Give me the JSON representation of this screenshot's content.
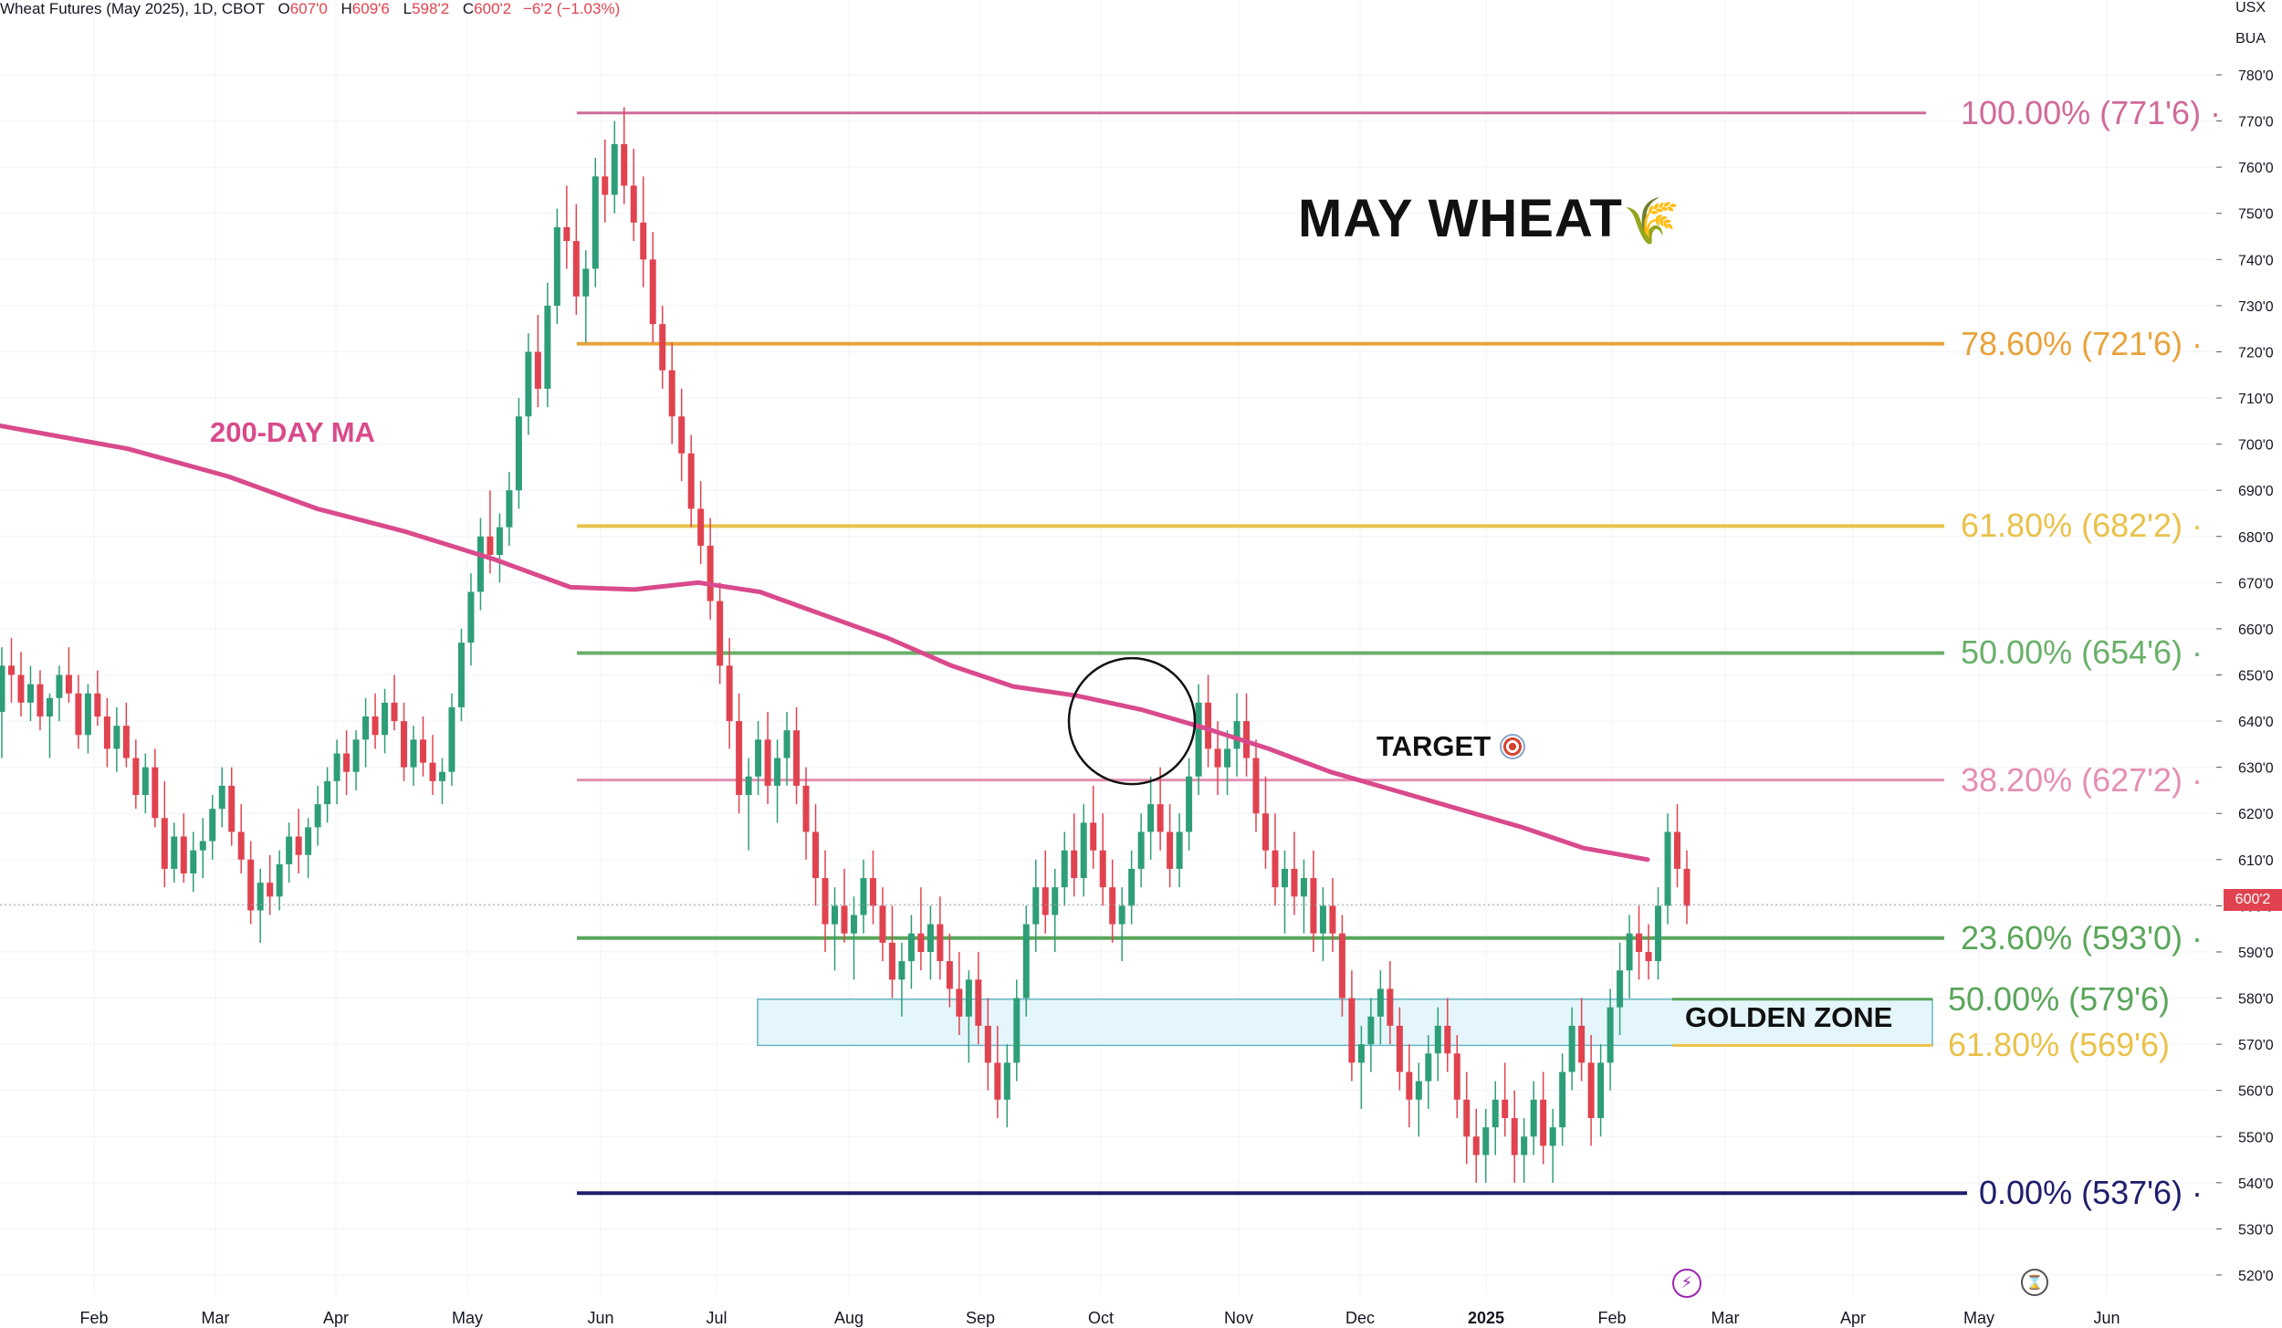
{
  "header": {
    "symbol": "Wheat Futures (May 2025), 1D, CBOT",
    "open_label": "O",
    "open": "607'0",
    "high_label": "H",
    "high": "609'6",
    "low_label": "L",
    "low": "598'2",
    "close_label": "C",
    "close": "600'2",
    "change": "−6'2 (−1.03%)"
  },
  "axis_units": {
    "currency": "USX",
    "unit": "BUA"
  },
  "last_price_tag": "600'2",
  "title": {
    "text": "MAY WHEAT",
    "emoji": "🌾"
  },
  "annotations": {
    "ma_label": "200-DAY MA",
    "target_label": "TARGET",
    "target_icon": "bullseye-icon",
    "golden_zone_label": "GOLDEN ZONE"
  },
  "colors": {
    "up": "#2e9e78",
    "down": "#e0434f",
    "ma200": "#d94a8c",
    "fib_100": "#d06a9a",
    "fib_786": "#e8a33b",
    "fib_618": "#e9c24a",
    "fib_50": "#6ab06a",
    "fib_382": "#e58fb2",
    "fib_236": "#5aa65a",
    "fib_0": "#1f1d6b",
    "golden_zone_fill": "#e4f5fb",
    "golden_zone_border": "#67b6c4"
  },
  "chart_data": {
    "type": "candlestick",
    "title": "MAY WHEAT",
    "ylim": [
      516,
      785
    ],
    "y_ticks": [
      "780'0",
      "770'0",
      "760'0",
      "750'0",
      "740'0",
      "730'0",
      "720'0",
      "710'0",
      "700'0",
      "690'0",
      "680'0",
      "670'0",
      "660'0",
      "650'0",
      "640'0",
      "630'0",
      "620'0",
      "610'0",
      "600'0",
      "590'0",
      "580'0",
      "570'0",
      "560'0",
      "550'0",
      "540'0",
      "530'0",
      "520'0"
    ],
    "x_ticks": [
      "Feb",
      "Mar",
      "Apr",
      "May",
      "Jun",
      "Jul",
      "Aug",
      "Sep",
      "Oct",
      "Nov",
      "Dec",
      "2025",
      "Feb",
      "Mar",
      "Apr",
      "May",
      "Jun"
    ],
    "fib_levels": [
      {
        "label": "100.00% (771'6)",
        "value": 771.75
      },
      {
        "label": "78.60% (721'6)",
        "value": 721.75
      },
      {
        "label": "61.80% (682'2)",
        "value": 682.25
      },
      {
        "label": "50.00% (654'6)",
        "value": 654.75
      },
      {
        "label": "38.20% (627'2)",
        "value": 627.25
      },
      {
        "label": "23.60% (593'0)",
        "value": 593.0
      },
      {
        "label": "0.00% (537'6)",
        "value": 537.75
      }
    ],
    "golden_zone": [
      {
        "label": "50.00% (579'6)",
        "value": 579.75
      },
      {
        "label": "61.80% (569'6)",
        "value": 569.75
      }
    ],
    "ma200": [
      {
        "x": 0,
        "y": 704
      },
      {
        "x": 0.056,
        "y": 699
      },
      {
        "x": 0.1,
        "y": 693
      },
      {
        "x": 0.139,
        "y": 686
      },
      {
        "x": 0.178,
        "y": 681
      },
      {
        "x": 0.217,
        "y": 675
      },
      {
        "x": 0.239,
        "y": 671
      },
      {
        "x": 0.25,
        "y": 669
      },
      {
        "x": 0.278,
        "y": 668.5
      },
      {
        "x": 0.306,
        "y": 670
      },
      {
        "x": 0.333,
        "y": 668
      },
      {
        "x": 0.361,
        "y": 663
      },
      {
        "x": 0.389,
        "y": 658
      },
      {
        "x": 0.417,
        "y": 652
      },
      {
        "x": 0.444,
        "y": 647.5
      },
      {
        "x": 0.472,
        "y": 645.5
      },
      {
        "x": 0.5,
        "y": 642.5
      },
      {
        "x": 0.528,
        "y": 638.5
      },
      {
        "x": 0.556,
        "y": 634
      },
      {
        "x": 0.583,
        "y": 629
      },
      {
        "x": 0.611,
        "y": 625
      },
      {
        "x": 0.639,
        "y": 621
      },
      {
        "x": 0.667,
        "y": 617
      },
      {
        "x": 0.694,
        "y": 612.5
      },
      {
        "x": 0.722,
        "y": 610
      }
    ],
    "candles": [
      [
        642,
        656,
        632,
        652
      ],
      [
        652,
        658,
        644,
        650
      ],
      [
        650,
        655,
        641,
        644
      ],
      [
        644,
        652,
        640,
        648
      ],
      [
        648,
        651,
        638,
        641
      ],
      [
        641,
        646,
        632,
        645
      ],
      [
        645,
        652,
        640,
        650
      ],
      [
        650,
        656,
        644,
        646
      ],
      [
        646,
        650,
        634,
        637
      ],
      [
        637,
        648,
        633,
        646
      ],
      [
        646,
        651,
        639,
        641
      ],
      [
        641,
        645,
        630,
        634
      ],
      [
        634,
        643,
        629,
        639
      ],
      [
        639,
        644,
        630,
        632
      ],
      [
        632,
        636,
        621,
        624
      ],
      [
        624,
        633,
        620,
        630
      ],
      [
        630,
        634,
        617,
        619
      ],
      [
        619,
        627,
        604,
        608
      ],
      [
        608,
        618,
        605,
        615
      ],
      [
        615,
        620,
        605,
        607
      ],
      [
        607,
        616,
        603,
        612
      ],
      [
        612,
        619,
        606,
        614
      ],
      [
        614,
        624,
        610,
        621
      ],
      [
        621,
        630,
        617,
        626
      ],
      [
        626,
        630,
        613,
        616
      ],
      [
        616,
        622,
        607,
        610
      ],
      [
        610,
        614,
        596,
        599
      ],
      [
        599,
        608,
        592,
        605
      ],
      [
        605,
        611,
        598,
        602
      ],
      [
        602,
        612,
        599,
        609
      ],
      [
        609,
        618,
        605,
        615
      ],
      [
        615,
        621,
        607,
        611
      ],
      [
        611,
        619,
        606,
        617
      ],
      [
        617,
        626,
        613,
        622
      ],
      [
        622,
        630,
        618,
        627
      ],
      [
        627,
        636,
        622,
        633
      ],
      [
        633,
        638,
        624,
        629
      ],
      [
        629,
        638,
        625,
        636
      ],
      [
        636,
        645,
        630,
        641
      ],
      [
        641,
        646,
        634,
        637
      ],
      [
        637,
        647,
        633,
        644
      ],
      [
        644,
        650,
        638,
        640
      ],
      [
        640,
        644,
        627,
        630
      ],
      [
        630,
        639,
        626,
        636
      ],
      [
        636,
        641,
        628,
        631
      ],
      [
        631,
        637,
        624,
        627
      ],
      [
        627,
        632,
        622,
        629
      ],
      [
        629,
        646,
        626,
        643
      ],
      [
        643,
        660,
        640,
        657
      ],
      [
        657,
        672,
        652,
        668
      ],
      [
        668,
        684,
        664,
        680
      ],
      [
        680,
        690,
        672,
        676
      ],
      [
        676,
        685,
        670,
        682
      ],
      [
        682,
        694,
        678,
        690
      ],
      [
        690,
        710,
        686,
        706
      ],
      [
        706,
        724,
        702,
        720
      ],
      [
        720,
        728,
        708,
        712
      ],
      [
        712,
        735,
        708,
        730
      ],
      [
        730,
        751,
        726,
        747
      ],
      [
        747,
        756,
        738,
        744
      ],
      [
        744,
        752,
        728,
        732
      ],
      [
        732,
        742,
        722,
        738
      ],
      [
        738,
        762,
        734,
        758
      ],
      [
        758,
        766,
        748,
        754
      ],
      [
        754,
        770,
        750,
        765
      ],
      [
        765,
        773,
        752,
        756
      ],
      [
        756,
        764,
        744,
        748
      ],
      [
        748,
        758,
        734,
        740
      ],
      [
        740,
        746,
        722,
        726
      ],
      [
        726,
        730,
        712,
        716
      ],
      [
        716,
        722,
        700,
        706
      ],
      [
        706,
        712,
        692,
        698
      ],
      [
        698,
        702,
        682,
        686
      ],
      [
        686,
        692,
        674,
        678
      ],
      [
        678,
        684,
        662,
        666
      ],
      [
        666,
        670,
        648,
        652
      ],
      [
        652,
        658,
        634,
        640
      ],
      [
        640,
        646,
        620,
        624
      ],
      [
        624,
        632,
        612,
        628
      ],
      [
        628,
        640,
        624,
        636
      ],
      [
        636,
        642,
        622,
        626
      ],
      [
        626,
        636,
        618,
        632
      ],
      [
        632,
        642,
        626,
        638
      ],
      [
        638,
        643,
        622,
        626
      ],
      [
        626,
        630,
        610,
        616
      ],
      [
        616,
        622,
        600,
        606
      ],
      [
        606,
        612,
        590,
        596
      ],
      [
        596,
        604,
        586,
        600
      ],
      [
        600,
        608,
        592,
        594
      ],
      [
        594,
        602,
        584,
        598
      ],
      [
        598,
        610,
        594,
        606
      ],
      [
        606,
        612,
        596,
        600
      ],
      [
        600,
        604,
        588,
        592
      ],
      [
        592,
        600,
        580,
        584
      ],
      [
        584,
        592,
        576,
        588
      ],
      [
        588,
        598,
        582,
        594
      ],
      [
        594,
        604,
        586,
        590
      ],
      [
        590,
        600,
        584,
        596
      ],
      [
        596,
        602,
        584,
        588
      ],
      [
        588,
        594,
        578,
        582
      ],
      [
        582,
        590,
        572,
        576
      ],
      [
        576,
        586,
        566,
        584
      ],
      [
        584,
        590,
        570,
        574
      ],
      [
        574,
        580,
        560,
        566
      ],
      [
        566,
        574,
        554,
        558
      ],
      [
        558,
        570,
        552,
        566
      ],
      [
        566,
        584,
        562,
        580
      ],
      [
        580,
        600,
        576,
        596
      ],
      [
        596,
        610,
        590,
        604
      ],
      [
        604,
        612,
        594,
        598
      ],
      [
        598,
        608,
        590,
        604
      ],
      [
        604,
        616,
        600,
        612
      ],
      [
        612,
        620,
        602,
        606
      ],
      [
        606,
        622,
        602,
        618
      ],
      [
        618,
        626,
        608,
        612
      ],
      [
        612,
        620,
        600,
        604
      ],
      [
        604,
        610,
        592,
        596
      ],
      [
        596,
        604,
        588,
        600
      ],
      [
        600,
        612,
        596,
        608
      ],
      [
        608,
        620,
        604,
        616
      ],
      [
        616,
        628,
        610,
        622
      ],
      [
        622,
        630,
        612,
        616
      ],
      [
        616,
        622,
        604,
        608
      ],
      [
        608,
        620,
        604,
        616
      ],
      [
        616,
        632,
        612,
        628
      ],
      [
        628,
        648,
        624,
        644
      ],
      [
        644,
        650,
        630,
        634
      ],
      [
        634,
        640,
        624,
        630
      ],
      [
        630,
        638,
        624,
        634
      ],
      [
        634,
        646,
        628,
        640
      ],
      [
        640,
        646,
        628,
        632
      ],
      [
        632,
        636,
        616,
        620
      ],
      [
        620,
        628,
        608,
        612
      ],
      [
        612,
        620,
        600,
        604
      ],
      [
        604,
        612,
        594,
        608
      ],
      [
        608,
        616,
        598,
        602
      ],
      [
        602,
        610,
        594,
        606
      ],
      [
        606,
        612,
        590,
        594
      ],
      [
        594,
        604,
        588,
        600
      ],
      [
        600,
        606,
        590,
        594
      ],
      [
        594,
        598,
        576,
        580
      ],
      [
        580,
        586,
        562,
        566
      ],
      [
        566,
        574,
        556,
        570
      ],
      [
        570,
        580,
        564,
        576
      ],
      [
        576,
        586,
        570,
        582
      ],
      [
        582,
        588,
        570,
        574
      ],
      [
        574,
        578,
        560,
        564
      ],
      [
        564,
        570,
        552,
        558
      ],
      [
        558,
        566,
        550,
        562
      ],
      [
        562,
        572,
        556,
        568
      ],
      [
        568,
        578,
        562,
        574
      ],
      [
        574,
        580,
        564,
        568
      ],
      [
        568,
        572,
        554,
        558
      ],
      [
        558,
        564,
        544,
        550
      ],
      [
        550,
        556,
        540,
        546
      ],
      [
        546,
        556,
        540,
        552
      ],
      [
        552,
        562,
        546,
        558
      ],
      [
        558,
        566,
        550,
        554
      ],
      [
        554,
        560,
        540,
        546
      ],
      [
        546,
        554,
        540,
        550
      ],
      [
        550,
        562,
        546,
        558
      ],
      [
        558,
        564,
        544,
        548
      ],
      [
        548,
        556,
        540,
        552
      ],
      [
        552,
        568,
        548,
        564
      ],
      [
        564,
        578,
        560,
        574
      ],
      [
        574,
        580,
        562,
        566
      ],
      [
        566,
        572,
        548,
        554
      ],
      [
        554,
        570,
        550,
        566
      ],
      [
        566,
        582,
        560,
        578
      ],
      [
        578,
        592,
        572,
        586
      ],
      [
        586,
        598,
        580,
        594
      ],
      [
        594,
        600,
        584,
        590
      ],
      [
        590,
        596,
        584,
        588
      ],
      [
        588,
        604,
        584,
        600
      ],
      [
        600,
        620,
        596,
        616
      ],
      [
        616,
        622,
        604,
        608
      ],
      [
        608,
        612,
        596,
        600
      ]
    ]
  }
}
